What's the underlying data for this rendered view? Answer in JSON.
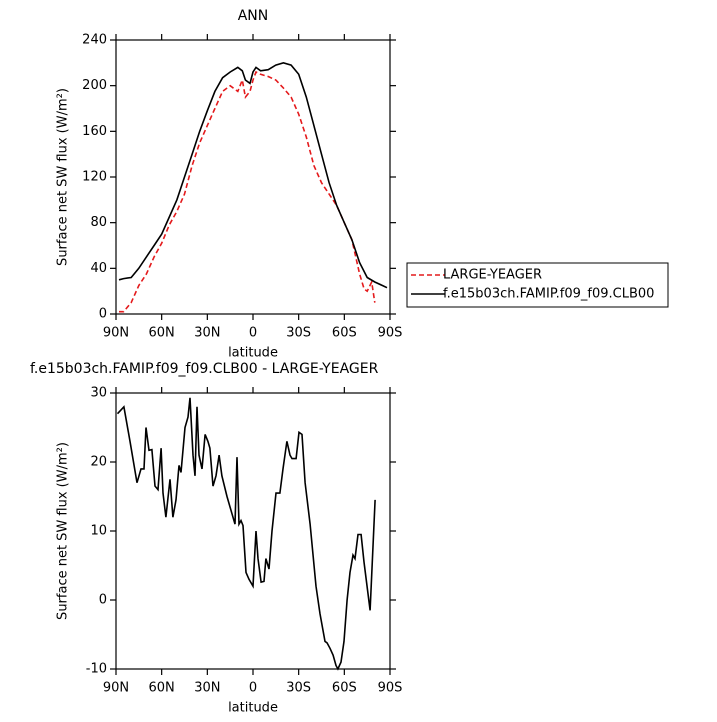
{
  "chart_data": [
    {
      "type": "line",
      "title": "ANN",
      "x_label": "latitude",
      "y_label": "Surface net SW flux (W/m²)",
      "xlim": [
        90,
        -90
      ],
      "ylim": [
        0,
        240
      ],
      "xticks": [
        {
          "value": 90,
          "label": "90N"
        },
        {
          "value": 60,
          "label": "60N"
        },
        {
          "value": 30,
          "label": "30N"
        },
        {
          "value": 0,
          "label": "0"
        },
        {
          "value": -30,
          "label": "30S"
        },
        {
          "value": -60,
          "label": "60S"
        },
        {
          "value": -90,
          "label": "90S"
        }
      ],
      "yticks": [
        0,
        40,
        80,
        120,
        160,
        200,
        240
      ],
      "legend": "right",
      "series": [
        {
          "name": "LARGE-YEAGER",
          "color": "#e41a1c",
          "linestyle": "dashed",
          "x": [
            88,
            85,
            80,
            75,
            70,
            65,
            60,
            55,
            50,
            45,
            40,
            35,
            30,
            25,
            20,
            15,
            10,
            7,
            5,
            2,
            0,
            -2,
            -5,
            -10,
            -15,
            -20,
            -25,
            -30,
            -35,
            -40,
            -45,
            -50,
            -55,
            -60,
            -65,
            -70,
            -73,
            -75,
            -78,
            -80
          ],
          "values": [
            2,
            2,
            10,
            25,
            35,
            50,
            62,
            78,
            90,
            105,
            130,
            150,
            165,
            180,
            195,
            200,
            195,
            205,
            190,
            195,
            205,
            212,
            210,
            208,
            205,
            198,
            190,
            175,
            155,
            130,
            115,
            105,
            95,
            80,
            65,
            35,
            22,
            20,
            28,
            10
          ]
        },
        {
          "name": "f.e15b03ch.FAMIP.f09_f09.CLB00",
          "color": "#000000",
          "linestyle": "solid",
          "x": [
            88,
            85,
            80,
            75,
            70,
            65,
            60,
            55,
            50,
            45,
            40,
            35,
            30,
            25,
            20,
            15,
            10,
            7,
            5,
            2,
            0,
            -2,
            -5,
            -10,
            -15,
            -20,
            -25,
            -30,
            -35,
            -40,
            -45,
            -50,
            -55,
            -60,
            -65,
            -70,
            -75,
            -80,
            -85,
            -88
          ],
          "values": [
            30,
            31,
            32,
            40,
            50,
            60,
            70,
            85,
            100,
            120,
            140,
            160,
            178,
            195,
            207,
            212,
            216,
            213,
            205,
            202,
            212,
            216,
            213,
            214,
            218,
            220,
            218,
            210,
            190,
            165,
            140,
            115,
            95,
            80,
            65,
            45,
            32,
            28,
            25,
            23
          ]
        }
      ]
    },
    {
      "type": "line",
      "title": "f.e15b03ch.FAMIP.f09_f09.CLB00 - LARGE-YEAGER",
      "x_label": "latitude",
      "y_label": "Surface net SW flux (W/m²)",
      "xlim": [
        90,
        -90
      ],
      "ylim": [
        -10,
        30
      ],
      "xticks": [
        {
          "value": 90,
          "label": "90N"
        },
        {
          "value": 60,
          "label": "60N"
        },
        {
          "value": 30,
          "label": "30N"
        },
        {
          "value": 0,
          "label": "0"
        },
        {
          "value": -30,
          "label": "30S"
        },
        {
          "value": -60,
          "label": "60S"
        },
        {
          "value": -90,
          "label": "90S"
        }
      ],
      "yticks": [
        -10,
        0,
        10,
        20,
        30
      ],
      "series": [
        {
          "color": "#000000",
          "linestyle": "solid",
          "x": [
            89,
            84.8,
            80.8,
            76.2,
            73.6,
            71.6,
            70.3,
            68.3,
            66.4,
            64.4,
            62.4,
            60.4,
            59.1,
            57.2,
            54.5,
            52.6,
            50.6,
            48.6,
            47.3,
            44.7,
            42.7,
            41.4,
            39.4,
            38.1,
            36.8,
            35.5,
            33.5,
            31.5,
            29.6,
            28.3,
            26.3,
            24.3,
            22.3,
            20.4,
            17.1,
            13.8,
            11.8,
            10.5,
            9.2,
            7.9,
            6.6,
            4.6,
            2.6,
            0,
            -2,
            -3.3,
            -5.3,
            -7.2,
            -8.5,
            -10.5,
            -12.5,
            -15.1,
            -17.7,
            -19.7,
            -22.3,
            -24.3,
            -25.6,
            -28.3,
            -30.2,
            -32.2,
            -34.2,
            -37.5,
            -41.4,
            -44,
            -47.3,
            -48.6,
            -50.6,
            -52.6,
            -54.5,
            -55.8,
            -57.8,
            -59.8,
            -61.8,
            -63.7,
            -65.7,
            -67,
            -69,
            -71,
            -72.9,
            -76.9,
            -80.2
          ],
          "values": [
            27,
            28,
            23,
            17,
            19,
            19,
            25,
            21.7,
            21.8,
            16.5,
            16,
            22,
            15.5,
            12,
            17.5,
            12,
            14.5,
            19.5,
            18.5,
            25,
            26.5,
            29.3,
            21,
            18,
            28,
            21,
            19,
            24,
            23,
            22,
            16.5,
            18,
            21,
            18,
            15,
            12.5,
            11,
            20.7,
            11,
            11.5,
            10.8,
            4,
            3,
            2,
            10,
            6,
            2.6,
            2.7,
            6,
            4.5,
            10,
            15.5,
            15.5,
            19,
            23,
            21,
            20.5,
            20.5,
            24.3,
            24,
            17,
            11,
            2,
            -2,
            -6,
            -6.2,
            -7,
            -8,
            -9.5,
            -10,
            -9,
            -6,
            0,
            4,
            6.5,
            6,
            9.5,
            9.5,
            5.5,
            -1.5,
            14.5
          ]
        }
      ]
    }
  ]
}
